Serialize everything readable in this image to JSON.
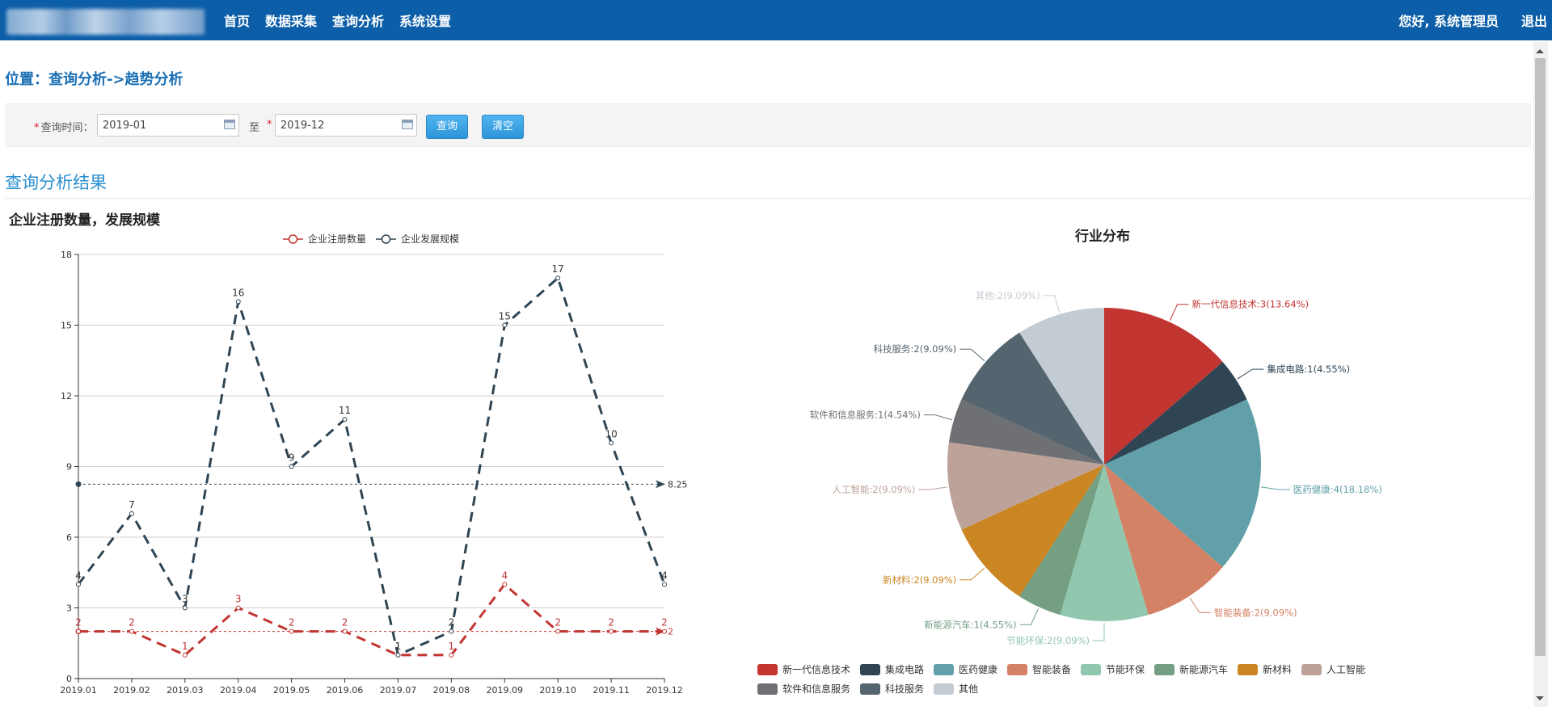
{
  "header": {
    "nav": [
      "首页",
      "数据采集",
      "查询分析",
      "系统设置"
    ],
    "greeting": "您好, 系统管理员",
    "logout": "退出"
  },
  "breadcrumb": "位置：查询分析->趋势分析",
  "query": {
    "time_label": "查询时间：",
    "start_value": "2019-01",
    "to_label": "至",
    "end_value": "2019-12",
    "search_button": "查询",
    "clear_button": "清空"
  },
  "results": {
    "title": "查询分析结果"
  },
  "colors": {
    "header_bg": "#0c5ea8",
    "series_red": "#c23531",
    "series_navy": "#2f4554"
  },
  "chart_data": [
    {
      "type": "line",
      "title": "企业注册数量，发展规模",
      "categories": [
        "2019.01",
        "2019.02",
        "2019.03",
        "2019.04",
        "2019.05",
        "2019.06",
        "2019.07",
        "2019.08",
        "2019.09",
        "2019.10",
        "2019.11",
        "2019.12"
      ],
      "series": [
        {
          "name": "企业注册数量",
          "values": [
            2,
            2,
            1,
            3,
            2,
            2,
            1,
            1,
            4,
            2,
            2,
            2
          ],
          "average": 2,
          "average_label": "2"
        },
        {
          "name": "企业发展规模",
          "values": [
            4,
            7,
            3,
            16,
            9,
            11,
            1,
            2,
            15,
            17,
            10,
            4
          ],
          "average": 8.25,
          "average_label": "8.25"
        }
      ],
      "yticks": [
        "0",
        "3",
        "6",
        "9",
        "12",
        "15",
        "18"
      ],
      "ylim": [
        0,
        18
      ],
      "grid": true,
      "legend_position": "top-center"
    },
    {
      "type": "pie",
      "title": "行业分布",
      "slices": [
        {
          "name": "新一代信息技术",
          "value": 3,
          "label": "新一代信息技术:3(13.64%)",
          "color": "#c23531"
        },
        {
          "name": "集成电路",
          "value": 1,
          "label": "集成电路:1(4.55%)",
          "color": "#2f4554"
        },
        {
          "name": "医药健康",
          "value": 4,
          "label": "医药健康:4(18.18%)",
          "color": "#61a0a8"
        },
        {
          "name": "智能装备",
          "value": 2,
          "label": "智能装备:2(9.09%)",
          "color": "#d48265"
        },
        {
          "name": "节能环保",
          "value": 2,
          "label": "节能环保:2(9.09%)",
          "color": "#91c7ae"
        },
        {
          "name": "新能源汽车",
          "value": 1,
          "label": "新能源汽车:1(4.55%)",
          "color": "#749f83"
        },
        {
          "name": "新材料",
          "value": 2,
          "label": "新材料:2(9.09%)",
          "color": "#ca8622"
        },
        {
          "name": "人工智能",
          "value": 2,
          "label": "人工智能:2(9.09%)",
          "color": "#bda29a"
        },
        {
          "name": "软件和信息服务",
          "value": 1,
          "label": "软件和信息服务:1(4.54%)",
          "color": "#6e7074"
        },
        {
          "name": "科技服务",
          "value": 2,
          "label": "科技服务:2(9.09%)",
          "color": "#546570"
        },
        {
          "name": "其他",
          "value": 2,
          "label": "其他:2(9.09%)",
          "color": "#c4ccd3"
        }
      ],
      "legend_position": "bottom"
    }
  ]
}
